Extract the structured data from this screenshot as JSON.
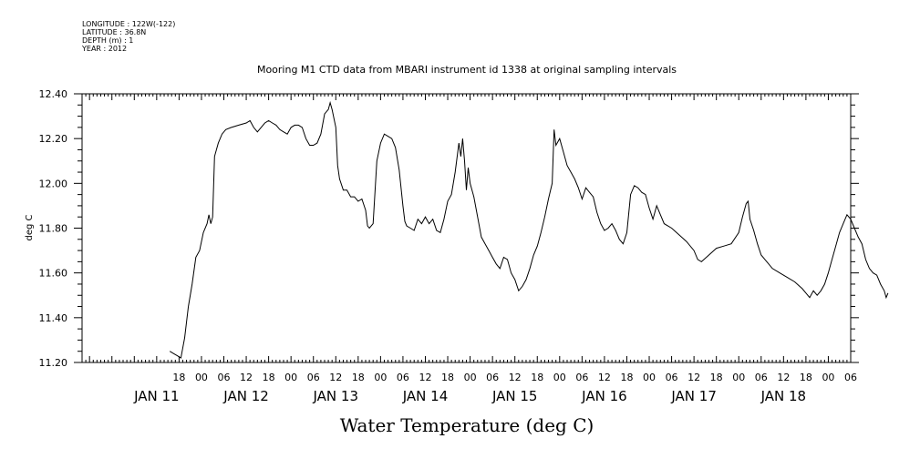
{
  "meta": {
    "longitude": "LONGITUDE : 122W(-122)",
    "latitude": "LATITUDE : 36.8N",
    "depth": "DEPTH (m) : 1",
    "year": "YEAR : 2012"
  },
  "chart_data": {
    "type": "line",
    "title": "Mooring M1 CTD data from MBARI instrument id 1338 at original sampling intervals",
    "ylabel": "deg C",
    "xlabel": "Water Temperature (deg C)",
    "ylim": [
      11.2,
      12.4
    ],
    "yticks": [
      "11.20",
      "11.40",
      "11.60",
      "11.80",
      "12.00",
      "12.20",
      "12.40"
    ],
    "xlim": [
      -8,
      198
    ],
    "x_unit": "hours from 00:00 JAN 11 2012",
    "hour_ticks": [
      {
        "x": 18,
        "label": "18"
      },
      {
        "x": 24,
        "label": "00"
      },
      {
        "x": 30,
        "label": "06"
      },
      {
        "x": 36,
        "label": "12"
      },
      {
        "x": 42,
        "label": "18"
      },
      {
        "x": 48,
        "label": "00"
      },
      {
        "x": 54,
        "label": "06"
      },
      {
        "x": 60,
        "label": "12"
      },
      {
        "x": 66,
        "label": "18"
      },
      {
        "x": 72,
        "label": "00"
      },
      {
        "x": 78,
        "label": "06"
      },
      {
        "x": 84,
        "label": "12"
      },
      {
        "x": 90,
        "label": "18"
      },
      {
        "x": 96,
        "label": "00"
      },
      {
        "x": 102,
        "label": "06"
      },
      {
        "x": 108,
        "label": "12"
      },
      {
        "x": 114,
        "label": "18"
      },
      {
        "x": 120,
        "label": "00"
      },
      {
        "x": 126,
        "label": "06"
      },
      {
        "x": 132,
        "label": "12"
      },
      {
        "x": 138,
        "label": "18"
      },
      {
        "x": 144,
        "label": "00"
      },
      {
        "x": 150,
        "label": "06"
      },
      {
        "x": 156,
        "label": "12"
      },
      {
        "x": 162,
        "label": "18"
      },
      {
        "x": 168,
        "label": "00"
      },
      {
        "x": 174,
        "label": "06"
      },
      {
        "x": 180,
        "label": "12"
      },
      {
        "x": 186,
        "label": "18"
      },
      {
        "x": 192,
        "label": "00"
      },
      {
        "x": 198,
        "label": "06"
      }
    ],
    "day_labels": [
      {
        "x": 12,
        "label": "JAN 11"
      },
      {
        "x": 36,
        "label": "JAN 12"
      },
      {
        "x": 60,
        "label": "JAN 13"
      },
      {
        "x": 84,
        "label": "JAN 14"
      },
      {
        "x": 108,
        "label": "JAN 15"
      },
      {
        "x": 132,
        "label": "JAN 16"
      },
      {
        "x": 156,
        "label": "JAN 17"
      },
      {
        "x": 180,
        "label": "JAN 18"
      }
    ],
    "series": [
      {
        "color": "#000000",
        "points": [
          [
            15.5,
            11.25
          ],
          [
            16.5,
            11.24
          ],
          [
            17.5,
            11.23
          ],
          [
            18.5,
            11.22
          ],
          [
            19.5,
            11.31
          ],
          [
            20.5,
            11.45
          ],
          [
            21.5,
            11.55
          ],
          [
            22.5,
            11.67
          ],
          [
            23.5,
            11.7
          ],
          [
            24.5,
            11.78
          ],
          [
            25.5,
            11.82
          ],
          [
            26.0,
            11.86
          ],
          [
            26.5,
            11.82
          ],
          [
            27.0,
            11.85
          ],
          [
            27.5,
            12.12
          ],
          [
            28.5,
            12.18
          ],
          [
            29.5,
            12.22
          ],
          [
            30.5,
            12.24
          ],
          [
            32,
            12.25
          ],
          [
            34,
            12.26
          ],
          [
            36,
            12.27
          ],
          [
            37,
            12.28
          ],
          [
            38,
            12.25
          ],
          [
            39,
            12.23
          ],
          [
            40,
            12.25
          ],
          [
            41,
            12.27
          ],
          [
            42,
            12.28
          ],
          [
            43,
            12.27
          ],
          [
            44,
            12.26
          ],
          [
            45,
            12.24
          ],
          [
            46,
            12.23
          ],
          [
            47,
            12.22
          ],
          [
            48,
            12.25
          ],
          [
            49,
            12.26
          ],
          [
            50,
            12.26
          ],
          [
            51,
            12.25
          ],
          [
            52,
            12.2
          ],
          [
            53,
            12.17
          ],
          [
            54,
            12.17
          ],
          [
            55,
            12.18
          ],
          [
            56,
            12.22
          ],
          [
            57,
            12.31
          ],
          [
            58,
            12.33
          ],
          [
            58.5,
            12.36
          ],
          [
            59,
            12.33
          ],
          [
            60,
            12.25
          ],
          [
            60.5,
            12.08
          ],
          [
            61,
            12.02
          ],
          [
            62,
            11.97
          ],
          [
            63,
            11.97
          ],
          [
            64,
            11.94
          ],
          [
            65,
            11.94
          ],
          [
            66,
            11.92
          ],
          [
            67,
            11.93
          ],
          [
            68,
            11.88
          ],
          [
            68.5,
            11.81
          ],
          [
            69,
            11.8
          ],
          [
            70,
            11.82
          ],
          [
            71,
            12.1
          ],
          [
            72,
            12.18
          ],
          [
            73,
            12.22
          ],
          [
            74,
            12.21
          ],
          [
            75,
            12.2
          ],
          [
            76,
            12.16
          ],
          [
            77,
            12.06
          ],
          [
            78,
            11.9
          ],
          [
            78.5,
            11.83
          ],
          [
            79,
            11.81
          ],
          [
            80,
            11.8
          ],
          [
            81,
            11.79
          ],
          [
            82,
            11.84
          ],
          [
            83,
            11.82
          ],
          [
            84,
            11.85
          ],
          [
            85,
            11.82
          ],
          [
            86,
            11.84
          ],
          [
            87,
            11.79
          ],
          [
            88,
            11.78
          ],
          [
            89,
            11.84
          ],
          [
            90,
            11.92
          ],
          [
            91,
            11.95
          ],
          [
            92,
            12.05
          ],
          [
            93,
            12.18
          ],
          [
            93.5,
            12.12
          ],
          [
            94,
            12.2
          ],
          [
            94.5,
            12.1
          ],
          [
            95,
            11.97
          ],
          [
            95.5,
            12.07
          ],
          [
            96,
            12.0
          ],
          [
            97,
            11.94
          ],
          [
            98,
            11.85
          ],
          [
            99,
            11.76
          ],
          [
            100,
            11.73
          ],
          [
            101,
            11.7
          ],
          [
            102,
            11.67
          ],
          [
            103,
            11.64
          ],
          [
            104,
            11.62
          ],
          [
            105,
            11.67
          ],
          [
            106,
            11.66
          ],
          [
            107,
            11.6
          ],
          [
            108,
            11.57
          ],
          [
            109,
            11.52
          ],
          [
            110,
            11.54
          ],
          [
            111,
            11.57
          ],
          [
            112,
            11.62
          ],
          [
            113,
            11.68
          ],
          [
            114,
            11.72
          ],
          [
            115,
            11.78
          ],
          [
            116,
            11.85
          ],
          [
            117,
            11.93
          ],
          [
            118,
            12.0
          ],
          [
            118.5,
            12.24
          ],
          [
            119,
            12.17
          ],
          [
            120,
            12.2
          ],
          [
            121,
            12.14
          ],
          [
            122,
            12.08
          ],
          [
            123,
            12.05
          ],
          [
            124,
            12.02
          ],
          [
            125,
            11.98
          ],
          [
            126,
            11.93
          ],
          [
            127,
            11.98
          ],
          [
            128,
            11.96
          ],
          [
            129,
            11.94
          ],
          [
            130,
            11.87
          ],
          [
            131,
            11.82
          ],
          [
            132,
            11.79
          ],
          [
            133,
            11.8
          ],
          [
            134,
            11.82
          ],
          [
            135,
            11.79
          ],
          [
            136,
            11.75
          ],
          [
            137,
            11.73
          ],
          [
            138,
            11.78
          ],
          [
            139,
            11.95
          ],
          [
            140,
            11.99
          ],
          [
            141,
            11.98
          ],
          [
            142,
            11.96
          ],
          [
            143,
            11.95
          ],
          [
            144,
            11.89
          ],
          [
            145,
            11.84
          ],
          [
            146,
            11.9
          ],
          [
            147,
            11.86
          ],
          [
            148,
            11.82
          ],
          [
            150,
            11.8
          ],
          [
            152,
            11.77
          ],
          [
            154,
            11.74
          ],
          [
            156,
            11.7
          ],
          [
            157,
            11.66
          ],
          [
            158,
            11.65
          ],
          [
            160,
            11.68
          ],
          [
            162,
            11.71
          ],
          [
            164,
            11.72
          ],
          [
            166,
            11.73
          ],
          [
            168,
            11.78
          ],
          [
            169,
            11.85
          ],
          [
            170,
            11.91
          ],
          [
            170.5,
            11.92
          ],
          [
            171,
            11.84
          ],
          [
            172,
            11.79
          ],
          [
            173,
            11.73
          ],
          [
            174,
            11.68
          ],
          [
            175,
            11.66
          ],
          [
            176,
            11.64
          ],
          [
            177,
            11.62
          ],
          [
            179,
            11.6
          ],
          [
            181,
            11.58
          ],
          [
            183,
            11.56
          ],
          [
            185,
            11.53
          ],
          [
            186,
            11.51
          ],
          [
            187,
            11.49
          ],
          [
            188,
            11.52
          ],
          [
            189,
            11.5
          ],
          [
            190,
            11.52
          ],
          [
            191,
            11.55
          ],
          [
            192,
            11.6
          ],
          [
            193,
            11.66
          ],
          [
            194,
            11.72
          ],
          [
            195,
            11.78
          ],
          [
            196,
            11.82
          ],
          [
            197,
            11.86
          ],
          [
            198,
            11.84
          ],
          [
            199,
            11.8
          ],
          [
            200,
            11.76
          ],
          [
            201,
            11.73
          ],
          [
            202,
            11.66
          ],
          [
            203,
            11.62
          ],
          [
            204,
            11.6
          ],
          [
            205,
            11.59
          ],
          [
            206,
            11.55
          ],
          [
            207,
            11.52
          ],
          [
            207.5,
            11.49
          ],
          [
            208,
            11.51
          ]
        ]
      }
    ]
  }
}
